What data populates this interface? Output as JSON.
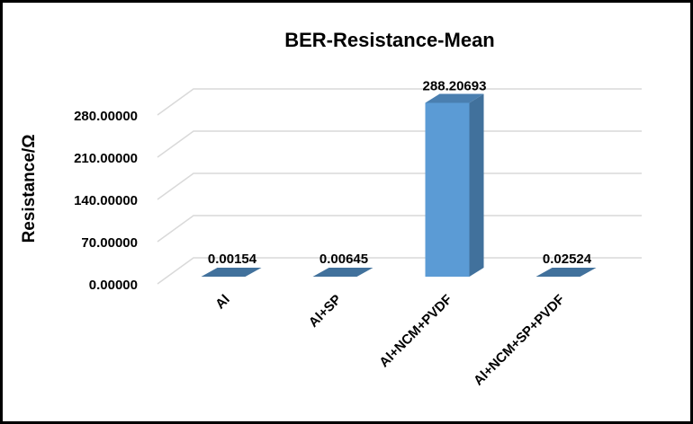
{
  "chart_data": {
    "type": "bar",
    "style": "3d-column",
    "title": "BER-Resistance-Mean",
    "xlabel": "",
    "ylabel": "Resistance/Ω",
    "categories": [
      "Al",
      "Al+SP",
      "Al+NCM+PVDF",
      "Al+NCM+SP+PVDF"
    ],
    "values": [
      0.00154,
      0.00645,
      288.20693,
      0.02524
    ],
    "data_labels": [
      "0.00154",
      "0.00645",
      "288.20693",
      "0.02524"
    ],
    "ylim": [
      0,
      280
    ],
    "yticks": [
      0,
      70,
      140,
      210,
      280
    ],
    "ytick_labels": [
      "0.00000",
      "70.00000",
      "140.00000",
      "210.00000",
      "280.00000"
    ],
    "grid": true,
    "legend": "none",
    "colors": {
      "bar_front": "#5b9bd5",
      "bar_side": "#41719c",
      "bar_top": "#4a7fb0",
      "grid": "#d9d9d9",
      "border": "#000000"
    }
  }
}
